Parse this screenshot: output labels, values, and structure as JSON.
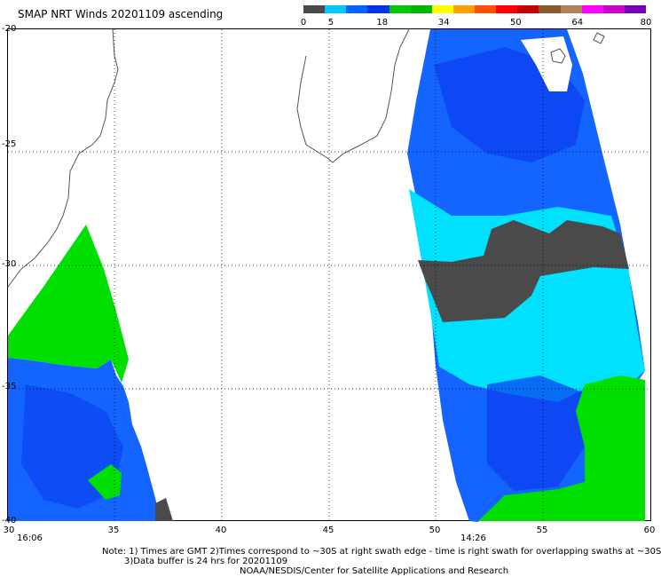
{
  "title": "SMAP NRT Winds 20201109 ascending",
  "colorbar": {
    "labels": [
      "0",
      "5",
      "18",
      "34",
      "50",
      "64",
      "80"
    ],
    "colors": [
      "#4a4a4a",
      "#00c8ff",
      "#0064ff",
      "#0032e6",
      "#00c800",
      "#00b400",
      "#ffff00",
      "#ffa000",
      "#ff5000",
      "#ff0000",
      "#c80000",
      "#8b5a2b",
      "#b4825a",
      "#ff00ff",
      "#c800c8",
      "#7800b4"
    ]
  },
  "axes": {
    "lat_labels": [
      "-20",
      "-25",
      "-30",
      "-35",
      "-40"
    ],
    "lon_labels": [
      "30",
      "35",
      "40",
      "45",
      "50",
      "55",
      "60"
    ]
  },
  "swath_times": [
    "16:06",
    "14:26"
  ],
  "notes": {
    "line1": "Note: 1) Times are GMT 2)Times correspond to ~30S at right swath edge - time is right swath for overlapping swaths at ~30S",
    "line2": "3)Data buffer is 24 hrs for 20201109",
    "line3": "NOAA/NESDIS/Center for Satellite Applications and Research"
  },
  "wind_colors": {
    "calm": "#4a4a4a",
    "light": "#00e0ff",
    "moderate": "#1464ff",
    "strong_blue": "#0a3cf0",
    "gale": "#00e000"
  }
}
